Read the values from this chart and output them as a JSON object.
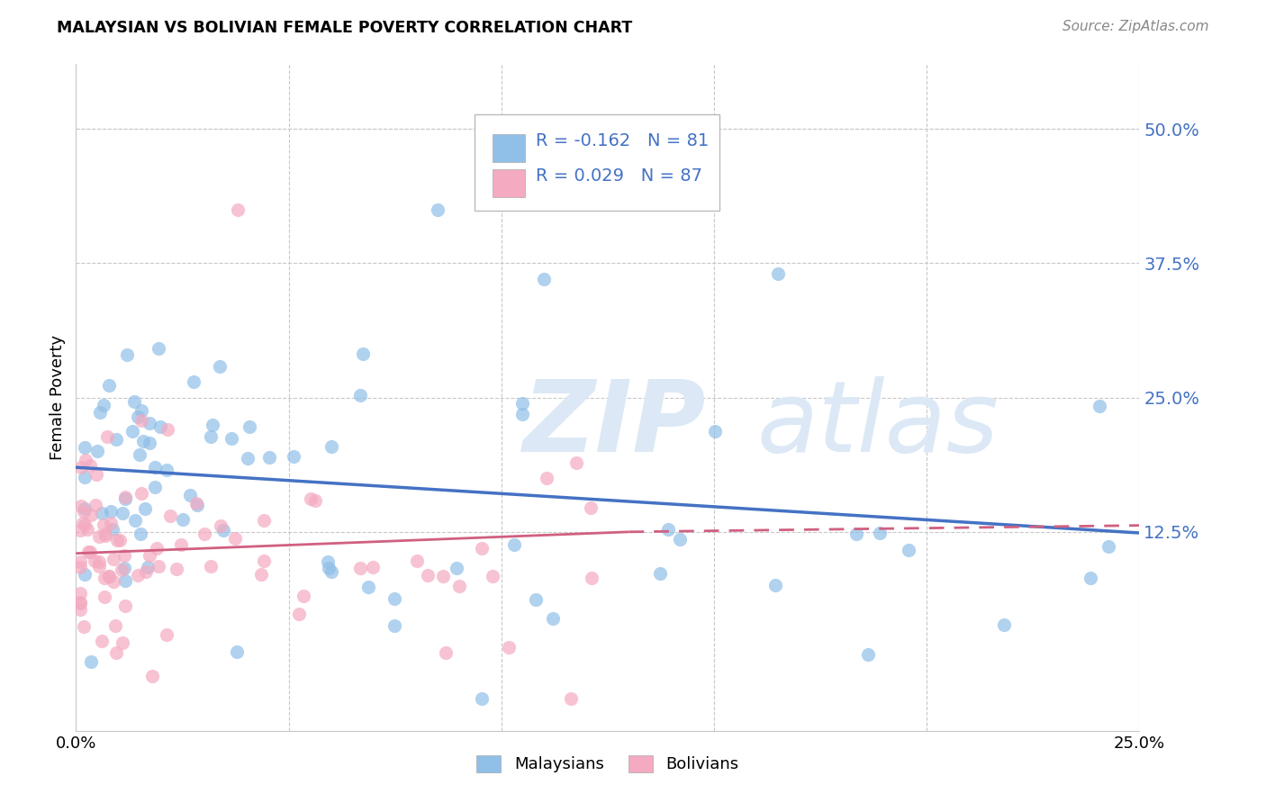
{
  "title": "MALAYSIAN VS BOLIVIAN FEMALE POVERTY CORRELATION CHART",
  "source": "Source: ZipAtlas.com",
  "ylabel": "Female Poverty",
  "ytick_labels": [
    "50.0%",
    "37.5%",
    "25.0%",
    "12.5%"
  ],
  "ytick_values": [
    0.5,
    0.375,
    0.25,
    0.125
  ],
  "xlim": [
    0.0,
    0.25
  ],
  "ylim": [
    -0.06,
    0.56
  ],
  "legend_r_malaysian": "-0.162",
  "legend_n_malaysian": "81",
  "legend_r_bolivian": "0.029",
  "legend_n_bolivian": "87",
  "color_malaysian": "#90bfe8",
  "color_bolivian": "#f4aac0",
  "color_text_blue": "#4472C4",
  "color_line_malaysian": "#4472C4",
  "color_line_bolivian": "#d06080",
  "background_color": "#ffffff",
  "grid_color": "#c8c8c8",
  "watermark_color": "#dce8f5",
  "mal_line_x0": 0.0,
  "mal_line_x1": 0.25,
  "mal_line_y0": 0.185,
  "mal_line_y1": 0.124,
  "bol_line_solid_x0": 0.0,
  "bol_line_solid_x1": 0.13,
  "bol_line_solid_y0": 0.105,
  "bol_line_solid_y1": 0.125,
  "bol_line_dash_x0": 0.13,
  "bol_line_dash_x1": 0.25,
  "bol_line_dash_y0": 0.125,
  "bol_line_dash_y1": 0.131
}
